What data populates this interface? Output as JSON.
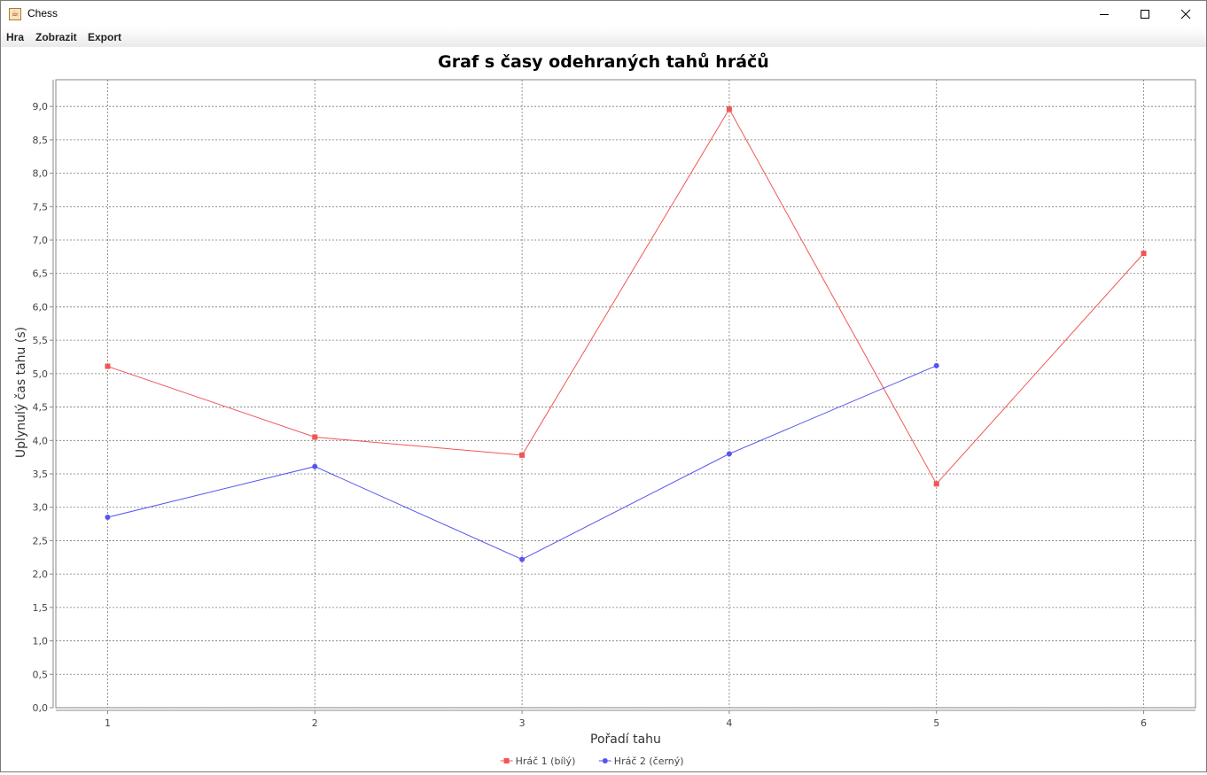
{
  "window": {
    "title": "Chess",
    "icon": "java-cup-icon",
    "controls": {
      "minimize_icon": "minimize-icon",
      "maximize_icon": "maximize-icon",
      "close_icon": "close-icon"
    }
  },
  "menu": {
    "items": [
      {
        "label": "Hra"
      },
      {
        "label": "Zobrazit"
      },
      {
        "label": "Export"
      }
    ]
  },
  "chart_data": {
    "type": "line",
    "title": "Graf s časy odehraných tahů hráčů",
    "xlabel": "Pořadí tahu",
    "ylabel": "Uplynulý čas tahu (s)",
    "xlim": [
      0.75,
      6.25
    ],
    "ylim": [
      0,
      9.4
    ],
    "x_ticks": [
      "1",
      "2",
      "3",
      "4",
      "5",
      "6"
    ],
    "y_ticks": [
      "0,0",
      "0,5",
      "1,0",
      "1,5",
      "2,0",
      "2,5",
      "3,0",
      "3,5",
      "4,0",
      "4,5",
      "5,0",
      "5,5",
      "6,0",
      "6,5",
      "7,0",
      "7,5",
      "8,0",
      "8,5",
      "9,0"
    ],
    "grid": true,
    "legend_position": "bottom",
    "series": [
      {
        "name": "Hráč 1 (bílý)",
        "color": "#f25555",
        "marker": "square",
        "x": [
          1,
          2,
          3,
          4,
          5,
          6
        ],
        "y": [
          5.11,
          4.05,
          3.78,
          8.96,
          3.35,
          6.8
        ]
      },
      {
        "name": "Hráč 2 (černý)",
        "color": "#5555f2",
        "marker": "circle",
        "x": [
          1,
          2,
          3,
          4,
          5
        ],
        "y": [
          2.85,
          3.61,
          2.22,
          3.8,
          5.12
        ]
      }
    ]
  }
}
